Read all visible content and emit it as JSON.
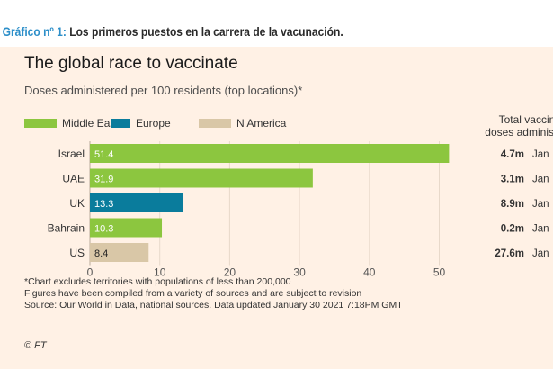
{
  "caption": {
    "prefix": "Gráfico nº 1:",
    "text": " Los primeros puestos en la carrera de la vacunación."
  },
  "colors": {
    "panel": "#fff1e5",
    "middle_east": "#8cc63f",
    "europe": "#0a7c9c",
    "n_america": "#d9c7a7",
    "caption_accent": "#2d8fc9"
  },
  "chart_data": {
    "type": "bar",
    "orientation": "horizontal",
    "title": "The global race to vaccinate",
    "subtitle": "Doses administered per 100 residents (top locations)*",
    "legend": {
      "position": "top-left",
      "entries": [
        {
          "name": "Middle East",
          "color": "#8cc63f"
        },
        {
          "name": "Europe",
          "color": "#0a7c9c"
        },
        {
          "name": "N America",
          "color": "#d9c7a7"
        }
      ]
    },
    "categories": [
      "Israel",
      "UAE",
      "UK",
      "Bahrain",
      "US"
    ],
    "values": [
      51.4,
      31.9,
      13.3,
      10.3,
      8.4
    ],
    "value_labels": [
      "51.4",
      "31.9",
      "13.3",
      "10.3",
      "8.4"
    ],
    "regions": [
      "Middle East",
      "Middle East",
      "Europe",
      "Middle East",
      "N America"
    ],
    "xlim": [
      0,
      55
    ],
    "xticks": [
      "0",
      "10",
      "20",
      "30",
      "40",
      "50"
    ],
    "xtick_values": [
      0,
      10,
      20,
      30,
      40,
      50
    ],
    "grid": true,
    "totals_header": [
      "Total vaccinati",
      "doses administer"
    ],
    "totals": [
      {
        "doses": "4.7m",
        "date": "Jan"
      },
      {
        "doses": "3.1m",
        "date": "Jan"
      },
      {
        "doses": "8.9m",
        "date": "Jan"
      },
      {
        "doses": "0.2m",
        "date": "Jan"
      },
      {
        "doses": "27.6m",
        "date": "Jan"
      }
    ]
  },
  "notes": [
    "*Chart excludes territories with populations of less than 200,000",
    "Figures have been compiled from a variety of sources and are subject to revision",
    "Source: Our World in Data, national sources. Data updated January 30 2021 7:18PM GMT"
  ],
  "credit": "© FT"
}
